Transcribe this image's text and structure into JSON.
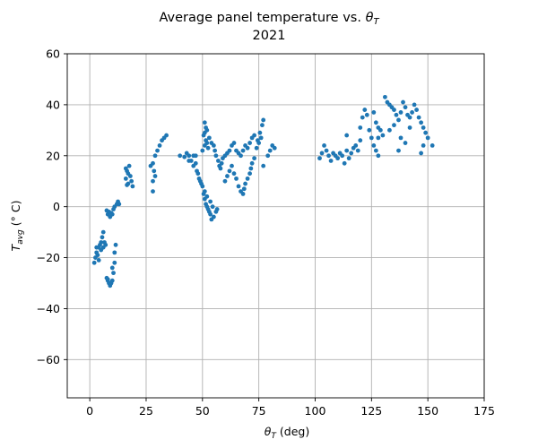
{
  "chart_data": {
    "type": "scatter",
    "title": "Average panel temperature vs. θ_T",
    "subtitle": "2021",
    "title_main": "Average panel temperature vs. ",
    "title_symbol": "θ",
    "title_symbol_sub": "T",
    "xlabel_symbol": "θ",
    "xlabel_sub": "T",
    "xlabel_rest": " (deg)",
    "ylabel_symbol": "T",
    "ylabel_sub": "avg",
    "ylabel_rest": " (° C)",
    "xlim": [
      -10,
      175
    ],
    "ylim": [
      -75,
      60
    ],
    "xticks": [
      0,
      25,
      50,
      75,
      100,
      125,
      150,
      175
    ],
    "yticks": [
      -60,
      -40,
      -20,
      0,
      20,
      40,
      60
    ],
    "grid": true,
    "marker_color": "#1f77b4",
    "series": [
      {
        "points": [
          [
            2,
            -22
          ],
          [
            2.5,
            -20
          ],
          [
            3,
            -18
          ],
          [
            3.5,
            -19
          ],
          [
            4,
            -16
          ],
          [
            4.5,
            -15
          ],
          [
            5,
            -14
          ],
          [
            5.5,
            -12
          ],
          [
            6,
            -10
          ],
          [
            5,
            -17
          ],
          [
            6,
            -16
          ],
          [
            4,
            -21
          ],
          [
            3,
            -16
          ],
          [
            6.5,
            -14
          ],
          [
            7,
            -15
          ],
          [
            7.5,
            -28
          ],
          [
            8,
            -29
          ],
          [
            8.5,
            -30
          ],
          [
            9,
            -31
          ],
          [
            9.5,
            -30
          ],
          [
            10,
            -29
          ],
          [
            10.5,
            -26
          ],
          [
            11,
            -22
          ],
          [
            11,
            -18
          ],
          [
            11.5,
            -15
          ],
          [
            10,
            -24
          ],
          [
            8,
            -28.5
          ],
          [
            9,
            -30.5
          ],
          [
            8,
            -3
          ],
          [
            8.5,
            -2
          ],
          [
            9,
            -4
          ],
          [
            10,
            -3
          ],
          [
            10.5,
            -1
          ],
          [
            11,
            0
          ],
          [
            12,
            1
          ],
          [
            12.5,
            2
          ],
          [
            13,
            1
          ],
          [
            9.5,
            -2.5
          ],
          [
            7.5,
            -1.5
          ],
          [
            16,
            15
          ],
          [
            16.5,
            14
          ],
          [
            17,
            13
          ],
          [
            17.5,
            16
          ],
          [
            16,
            11
          ],
          [
            18,
            12
          ],
          [
            18.5,
            10
          ],
          [
            17,
            9
          ],
          [
            19,
            8
          ],
          [
            16.5,
            8.5
          ],
          [
            27,
            16
          ],
          [
            28,
            17
          ],
          [
            28.5,
            14
          ],
          [
            29,
            12
          ],
          [
            28,
            10
          ],
          [
            28,
            6
          ],
          [
            29,
            20
          ],
          [
            30,
            22
          ],
          [
            31,
            24
          ],
          [
            32,
            26
          ],
          [
            34,
            28
          ],
          [
            33,
            27
          ],
          [
            40,
            20
          ],
          [
            42,
            19.5
          ],
          [
            43,
            21
          ],
          [
            44,
            20
          ],
          [
            45,
            18
          ],
          [
            46,
            20
          ],
          [
            46,
            16
          ],
          [
            47,
            17
          ],
          [
            47.5,
            14
          ],
          [
            48,
            13
          ],
          [
            48.5,
            11
          ],
          [
            47,
            20
          ],
          [
            44,
            18
          ],
          [
            49,
            10
          ],
          [
            49.5,
            9
          ],
          [
            50,
            8
          ],
          [
            50.5,
            5
          ],
          [
            51,
            3
          ],
          [
            51.5,
            1
          ],
          [
            52,
            0
          ],
          [
            52.5,
            -1
          ],
          [
            53,
            -2
          ],
          [
            53.5,
            -3
          ],
          [
            54,
            -5
          ],
          [
            55,
            -4
          ],
          [
            56,
            -2
          ],
          [
            56.5,
            -1
          ],
          [
            54.5,
            0
          ],
          [
            53.5,
            2
          ],
          [
            52,
            4
          ],
          [
            51,
            6
          ],
          [
            50,
            22
          ],
          [
            51,
            24
          ],
          [
            51.5,
            26
          ],
          [
            52,
            25
          ],
          [
            52.5,
            23
          ],
          [
            53,
            27
          ],
          [
            54,
            25
          ],
          [
            55,
            24
          ],
          [
            55.5,
            22
          ],
          [
            56,
            20
          ],
          [
            57,
            18
          ],
          [
            57.5,
            16
          ],
          [
            58,
            15
          ],
          [
            58.5,
            17
          ],
          [
            59,
            19
          ],
          [
            60,
            20
          ],
          [
            61,
            21
          ],
          [
            62,
            22
          ],
          [
            63,
            24
          ],
          [
            64,
            25
          ],
          [
            65,
            22
          ],
          [
            66,
            21
          ],
          [
            67,
            20
          ],
          [
            68,
            22
          ],
          [
            69,
            24
          ],
          [
            70,
            23
          ],
          [
            71,
            25
          ],
          [
            72,
            27
          ],
          [
            73,
            28
          ],
          [
            51,
            33
          ],
          [
            51.5,
            31
          ],
          [
            51,
            29
          ],
          [
            50.5,
            28
          ],
          [
            52,
            30
          ],
          [
            60,
            10
          ],
          [
            61,
            12
          ],
          [
            62,
            14
          ],
          [
            63,
            16
          ],
          [
            64,
            13
          ],
          [
            65,
            11
          ],
          [
            66,
            8
          ],
          [
            67,
            6
          ],
          [
            68,
            5
          ],
          [
            68.5,
            7
          ],
          [
            69,
            9
          ],
          [
            70,
            11
          ],
          [
            71,
            13
          ],
          [
            71.5,
            15
          ],
          [
            72,
            17
          ],
          [
            73,
            19
          ],
          [
            74,
            23
          ],
          [
            75,
            25
          ],
          [
            76,
            27
          ],
          [
            77,
            34
          ],
          [
            76.5,
            32
          ],
          [
            75.5,
            29
          ],
          [
            74.5,
            26
          ],
          [
            77,
            16
          ],
          [
            79,
            20
          ],
          [
            80,
            22
          ],
          [
            81,
            24
          ],
          [
            82,
            23
          ],
          [
            102,
            19
          ],
          [
            103,
            21
          ],
          [
            104,
            24
          ],
          [
            105,
            22
          ],
          [
            106,
            20
          ],
          [
            107,
            18
          ],
          [
            108,
            21
          ],
          [
            109,
            20
          ],
          [
            110,
            19
          ],
          [
            111,
            21
          ],
          [
            112,
            20
          ],
          [
            113,
            17
          ],
          [
            114,
            22
          ],
          [
            114,
            28
          ],
          [
            115,
            19
          ],
          [
            116,
            21
          ],
          [
            117,
            23
          ],
          [
            118,
            24
          ],
          [
            119,
            22
          ],
          [
            120,
            26
          ],
          [
            120,
            31
          ],
          [
            121,
            35
          ],
          [
            122,
            38
          ],
          [
            123,
            36
          ],
          [
            124,
            30
          ],
          [
            125,
            27
          ],
          [
            126,
            24
          ],
          [
            127,
            22
          ],
          [
            128,
            20
          ],
          [
            128,
            27
          ],
          [
            126,
            37
          ],
          [
            127,
            33
          ],
          [
            128,
            31
          ],
          [
            129,
            30
          ],
          [
            130,
            28
          ],
          [
            131,
            43
          ],
          [
            132,
            41
          ],
          [
            133,
            40
          ],
          [
            134,
            39
          ],
          [
            135,
            38
          ],
          [
            136,
            36
          ],
          [
            137,
            34
          ],
          [
            138,
            37
          ],
          [
            139,
            41
          ],
          [
            140,
            39
          ],
          [
            141,
            36
          ],
          [
            142,
            35
          ],
          [
            143,
            37
          ],
          [
            144,
            40
          ],
          [
            145,
            38
          ],
          [
            146,
            35
          ],
          [
            147,
            33
          ],
          [
            148,
            31
          ],
          [
            149,
            29
          ],
          [
            150,
            27
          ],
          [
            148,
            24
          ],
          [
            147,
            21
          ],
          [
            152,
            24
          ],
          [
            140,
            25
          ],
          [
            138,
            27
          ],
          [
            142,
            31
          ],
          [
            135,
            32
          ],
          [
            133,
            30
          ],
          [
            137,
            22
          ]
        ]
      }
    ]
  }
}
